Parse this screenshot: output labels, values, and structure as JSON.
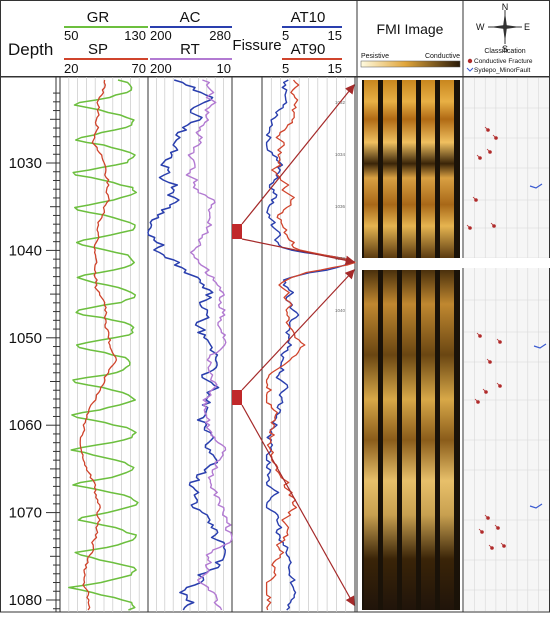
{
  "depth_header": "Depth",
  "depth_ticks": [
    "1030",
    "1040",
    "1050",
    "1060",
    "1070",
    "1080"
  ],
  "tracks": {
    "gr": {
      "name": "GR",
      "min": "50",
      "max": "130",
      "color": "#6cbf3e"
    },
    "sp": {
      "name": "SP",
      "min": "20",
      "max": "70",
      "color": "#d0442c"
    },
    "ac": {
      "name": "AC",
      "min": "200",
      "max": "280",
      "color": "#2a3fae"
    },
    "rt": {
      "name": "RT",
      "min": "200",
      "max": "10",
      "color": "#b27ad2"
    },
    "at10": {
      "name": "AT10",
      "min": "5",
      "max": "15",
      "color": "#2a3fae"
    },
    "at90": {
      "name": "AT90",
      "min": "5",
      "max": "15",
      "color": "#d0442c"
    }
  },
  "fissure_label": "Fissure",
  "fmi": {
    "title": "FMI Image",
    "scale_left": "Pesistive",
    "scale_right": "Conductive"
  },
  "compass": {
    "n": "N",
    "s": "S",
    "e": "E",
    "w": "W"
  },
  "classification": {
    "title": "Classification",
    "item1": "Conductive Fracture",
    "item2": "Sydepo_MinorFault"
  },
  "mini_depths": [
    "1032",
    "1034",
    "1036",
    "1038",
    "1040"
  ],
  "colors": {
    "fissure_marker": "#c0282a",
    "arrow": "#a52a2a"
  }
}
